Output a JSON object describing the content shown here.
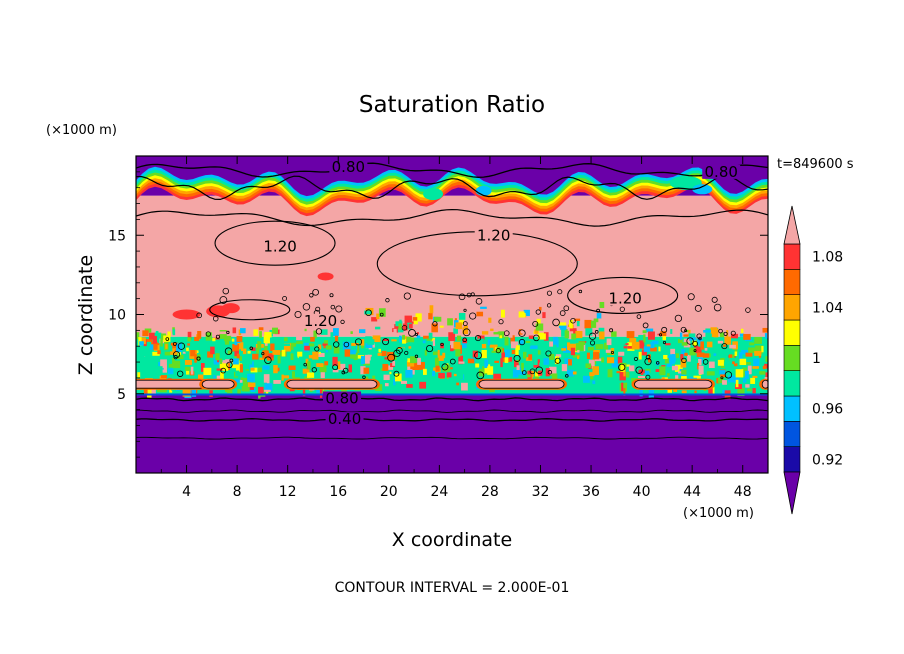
{
  "chart_data": {
    "type": "contour",
    "title": "Saturation Ratio",
    "time_label": "t=849600 s",
    "xlabel": "X coordinate",
    "ylabel": "Z coordinate",
    "x_unit": "(×1000 m)",
    "y_unit": "(×1000 m)",
    "xlim": [
      0,
      50
    ],
    "ylim": [
      0,
      20
    ],
    "x_ticks": [
      4,
      8,
      12,
      16,
      20,
      24,
      28,
      32,
      36,
      40,
      44,
      48
    ],
    "y_ticks": [
      5,
      10,
      15
    ],
    "footer": "CONTOUR INTERVAL = 2.000E-01",
    "colorbar": {
      "labels": [
        "1.08",
        "1.04",
        "1",
        "0.96",
        "0.92"
      ],
      "levels": [
        0.92,
        0.94,
        0.96,
        0.98,
        1.0,
        1.02,
        1.04,
        1.06,
        1.08,
        1.1
      ],
      "colors": [
        "#6a00a8",
        "#1a0aa8",
        "#0055e0",
        "#00c0ff",
        "#00e8a0",
        "#66dd22",
        "#ffff00",
        "#ffa500",
        "#ff6a00",
        "#ff3333",
        "#f4a6a6"
      ]
    },
    "contour_labels": [
      {
        "text": "0.80",
        "x": 16.8,
        "z": 19.3
      },
      {
        "text": "0.80",
        "x": 46.3,
        "z": 19.0
      },
      {
        "text": "1.20",
        "x": 11.4,
        "z": 14.3
      },
      {
        "text": "1.20",
        "x": 28.3,
        "z": 15.0
      },
      {
        "text": "1.20",
        "x": 14.6,
        "z": 9.6
      },
      {
        "text": "1.20",
        "x": 38.7,
        "z": 11.0
      },
      {
        "text": "0.80",
        "x": 16.3,
        "z": 4.7
      },
      {
        "text": "0.40",
        "x": 16.5,
        "z": 3.4
      }
    ]
  }
}
